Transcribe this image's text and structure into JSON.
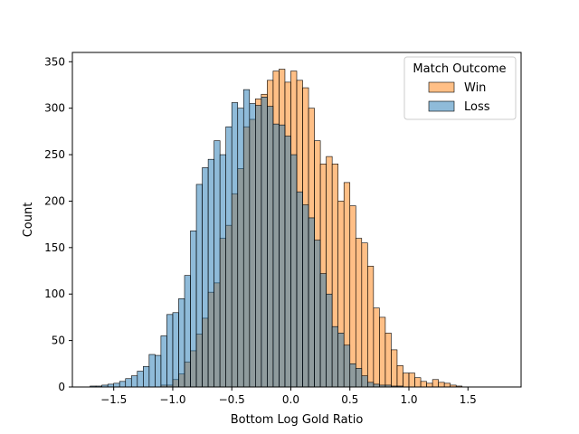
{
  "chart_data": {
    "type": "histogram",
    "title": "",
    "xlabel": "Bottom Log Gold Ratio",
    "ylabel": "Count",
    "xlim": [
      -1.85,
      1.95
    ],
    "ylim": [
      0,
      360
    ],
    "xticks": [
      -1.5,
      -1.0,
      -0.5,
      0.0,
      0.5,
      1.0,
      1.5
    ],
    "xtick_labels": [
      "−1.5",
      "−1.0",
      "−0.5",
      "0.0",
      "0.5",
      "1.0",
      "1.5"
    ],
    "yticks": [
      0,
      50,
      100,
      150,
      200,
      250,
      300,
      350
    ],
    "ytick_labels": [
      "0",
      "50",
      "100",
      "150",
      "200",
      "250",
      "300",
      "350"
    ],
    "bin_start": -1.7,
    "bin_width": 0.05,
    "grid": false,
    "legend": {
      "title": "Match Outcome",
      "placement": "upper right",
      "entries": [
        "Win",
        "Loss"
      ]
    },
    "series": [
      {
        "name": "Win",
        "color": "#ff7f0e",
        "values": [
          0,
          0,
          0,
          0,
          0,
          0,
          0,
          0,
          0,
          0,
          0,
          0,
          2,
          2,
          8,
          14,
          27,
          39,
          57,
          74,
          102,
          112,
          160,
          174,
          208,
          235,
          280,
          288,
          310,
          315,
          330,
          340,
          342,
          328,
          340,
          330,
          322,
          300,
          265,
          240,
          248,
          240,
          200,
          220,
          195,
          160,
          155,
          130,
          85,
          75,
          58,
          40,
          23,
          15,
          15,
          10,
          6,
          4,
          8,
          5,
          4,
          2,
          1,
          0,
          0,
          0,
          0,
          0,
          0,
          0,
          0,
          0
        ]
      },
      {
        "name": "Loss",
        "color": "#1f77b4",
        "values": [
          1,
          1,
          2,
          3,
          4,
          6,
          9,
          12,
          17,
          22,
          35,
          34,
          55,
          78,
          80,
          95,
          120,
          168,
          218,
          236,
          245,
          265,
          250,
          280,
          306,
          300,
          320,
          305,
          303,
          312,
          302,
          283,
          282,
          270,
          250,
          210,
          196,
          182,
          158,
          122,
          100,
          65,
          58,
          45,
          25,
          20,
          12,
          5,
          3,
          2,
          2,
          1,
          1,
          0,
          0,
          0,
          0,
          0,
          0,
          0,
          0,
          0,
          0,
          0,
          0,
          0,
          0,
          0,
          0,
          0,
          0,
          0
        ]
      }
    ]
  }
}
